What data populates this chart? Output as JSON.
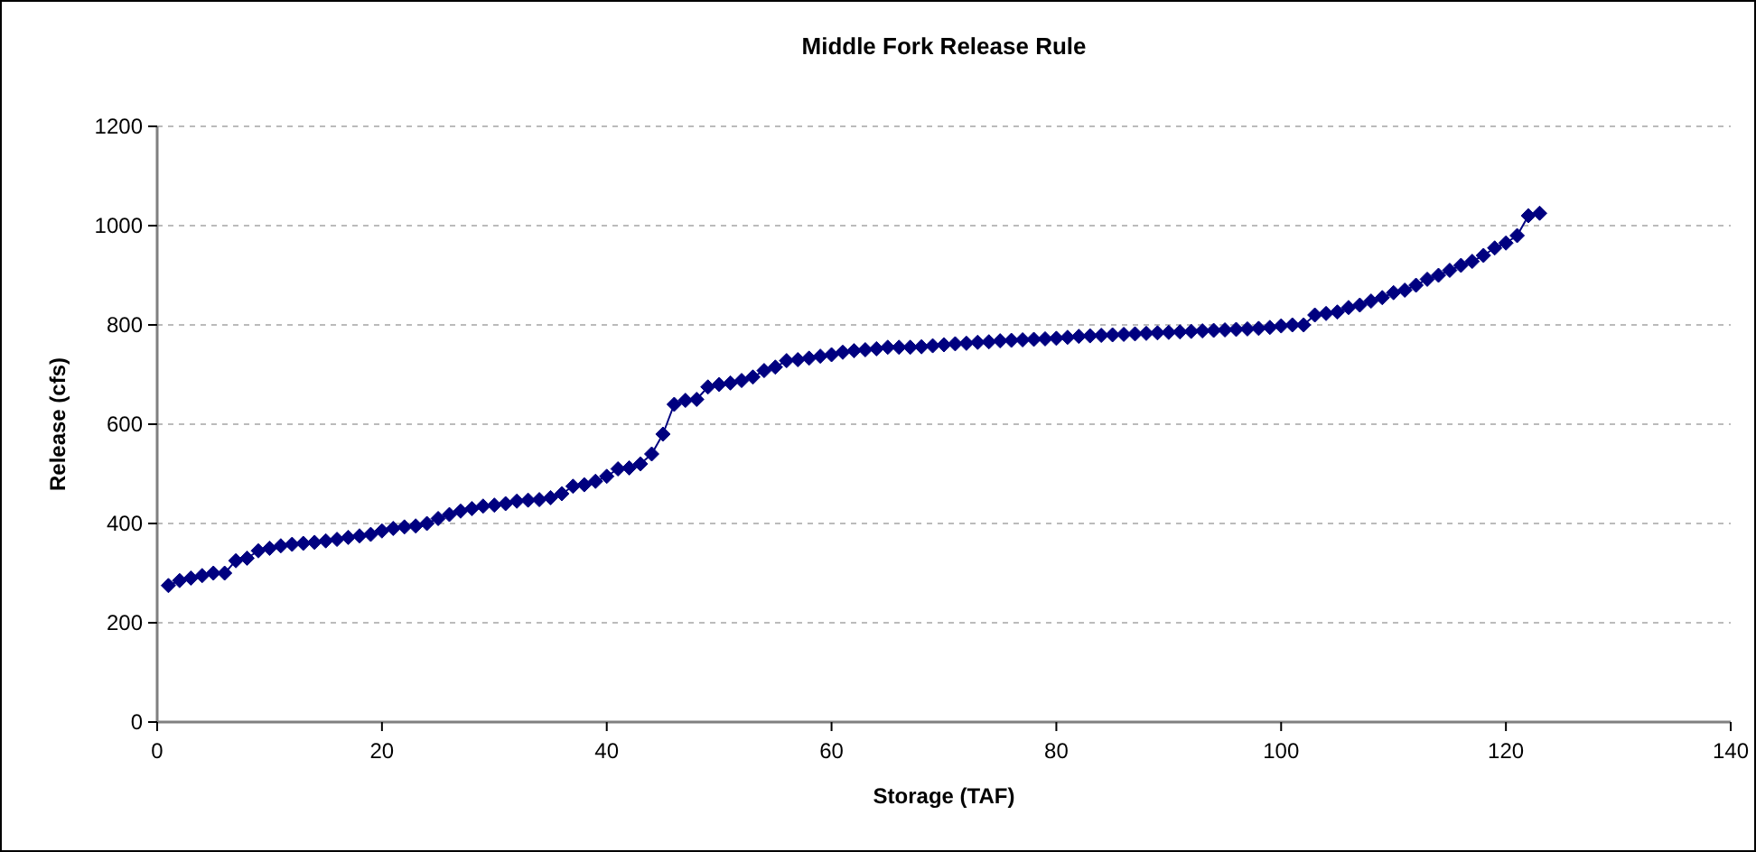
{
  "chart_data": {
    "type": "line",
    "title": "Middle Fork Release Rule",
    "xlabel": "Storage (TAF)",
    "ylabel": "Release (cfs)",
    "x": [
      1,
      2,
      3,
      4,
      5,
      6,
      7,
      8,
      9,
      10,
      11,
      12,
      13,
      14,
      15,
      16,
      17,
      18,
      19,
      20,
      21,
      22,
      23,
      24,
      25,
      26,
      27,
      28,
      29,
      30,
      31,
      32,
      33,
      34,
      35,
      36,
      37,
      38,
      39,
      40,
      41,
      42,
      43,
      44,
      45,
      46,
      47,
      48,
      49,
      50,
      51,
      52,
      53,
      54,
      55,
      56,
      57,
      58,
      59,
      60,
      61,
      62,
      63,
      64,
      65,
      66,
      67,
      68,
      69,
      70,
      71,
      72,
      73,
      74,
      75,
      76,
      77,
      78,
      79,
      80,
      81,
      82,
      83,
      84,
      85,
      86,
      87,
      88,
      89,
      90,
      91,
      92,
      93,
      94,
      95,
      96,
      97,
      98,
      99,
      100,
      101,
      102,
      103,
      104,
      105,
      106,
      107,
      108,
      109,
      110,
      111,
      112,
      113,
      114,
      115,
      116,
      117,
      118,
      119,
      120,
      121,
      122,
      123
    ],
    "series": [
      {
        "color": "#000080",
        "values": [
          275,
          285,
          290,
          295,
          300,
          300,
          325,
          330,
          345,
          350,
          355,
          358,
          360,
          362,
          365,
          368,
          372,
          375,
          378,
          385,
          390,
          393,
          395,
          400,
          410,
          418,
          425,
          430,
          435,
          437,
          440,
          445,
          447,
          448,
          452,
          460,
          475,
          478,
          485,
          495,
          510,
          512,
          520,
          540,
          580,
          640,
          648,
          650,
          675,
          680,
          683,
          688,
          695,
          708,
          715,
          728,
          730,
          733,
          737,
          740,
          745,
          748,
          750,
          752,
          755,
          755,
          755,
          756,
          758,
          760,
          762,
          763,
          765,
          766,
          768,
          769,
          770,
          771,
          772,
          773,
          775,
          777,
          778,
          779,
          780,
          781,
          782,
          783,
          784,
          785,
          786,
          787,
          788,
          789,
          790,
          791,
          792,
          793,
          795,
          798,
          800,
          800,
          820,
          823,
          826,
          835,
          840,
          848,
          855,
          865,
          870,
          880,
          892,
          900,
          910,
          920,
          928,
          940,
          955,
          965,
          980,
          1020,
          1025
        ]
      }
    ],
    "xlim": [
      0,
      140
    ],
    "xticks": [
      0,
      20,
      40,
      60,
      80,
      100,
      120,
      140
    ],
    "ylim": [
      0,
      1200
    ],
    "yticks": [
      0,
      200,
      400,
      600,
      800,
      1000,
      1200
    ],
    "grid": "y",
    "marker": "diamond",
    "line_style": "solid"
  }
}
